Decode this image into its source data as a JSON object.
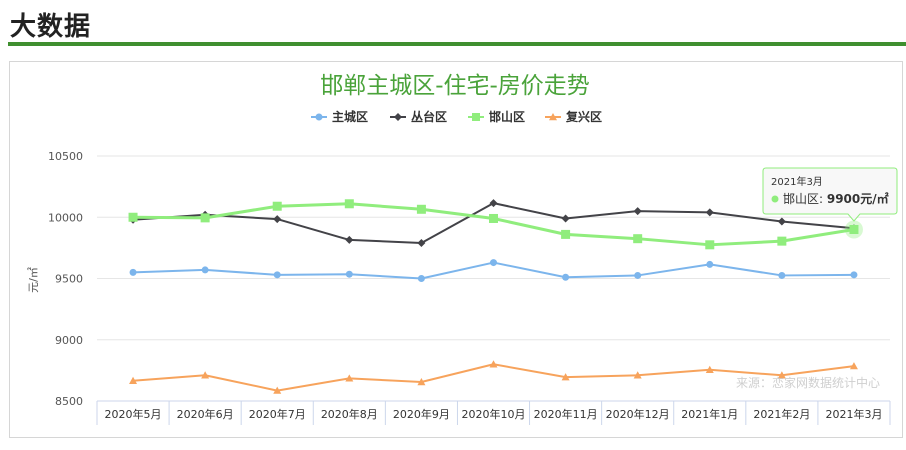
{
  "header": {
    "title": "大数据"
  },
  "colors": {
    "accent_green": "#3f8f2f",
    "title_green": "#4aa33a"
  },
  "chart_data": {
    "type": "line",
    "title": "邯郸主城区-住宅-房价走势",
    "xlabel": "",
    "ylabel": "元/㎡",
    "ylim": [
      8500,
      10500
    ],
    "yticks": [
      8500,
      9000,
      9500,
      10000,
      10500
    ],
    "grid": true,
    "legend_position": "top",
    "categories": [
      "2020年5月",
      "2020年6月",
      "2020年7月",
      "2020年8月",
      "2020年9月",
      "2020年10月",
      "2020年11月",
      "2020年12月",
      "2021年1月",
      "2021年2月",
      "2021年3月"
    ],
    "series": [
      {
        "name": "主城区",
        "color": "#7cb5ec",
        "marker": "circle",
        "values": [
          9550,
          9570,
          9530,
          9535,
          9500,
          9630,
          9510,
          9525,
          9615,
          9525,
          9530
        ]
      },
      {
        "name": "丛台区",
        "color": "#434348",
        "marker": "diamond",
        "values": [
          9980,
          10020,
          9985,
          9815,
          9790,
          10115,
          9990,
          10050,
          10040,
          9965,
          9910
        ]
      },
      {
        "name": "邯山区",
        "color": "#90ed7d",
        "marker": "square",
        "values": [
          10000,
          9995,
          10090,
          10110,
          10065,
          9990,
          9860,
          9825,
          9775,
          9805,
          9900
        ]
      },
      {
        "name": "复兴区",
        "color": "#f7a35c",
        "marker": "triangle",
        "values": [
          8665,
          8710,
          8585,
          8685,
          8655,
          8800,
          8695,
          8710,
          8755,
          8710,
          8785
        ]
      }
    ],
    "tooltip": {
      "date": "2021年3月",
      "series": "邯山区",
      "value": "9900元/㎡"
    },
    "credit": "来源：恋家网数据统计中心"
  }
}
